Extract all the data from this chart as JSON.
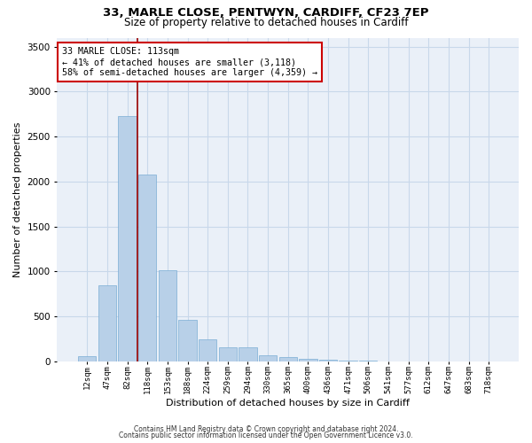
{
  "title_line1": "33, MARLE CLOSE, PENTWYN, CARDIFF, CF23 7EP",
  "title_line2": "Size of property relative to detached houses in Cardiff",
  "xlabel": "Distribution of detached houses by size in Cardiff",
  "ylabel": "Number of detached properties",
  "categories": [
    "12sqm",
    "47sqm",
    "82sqm",
    "118sqm",
    "153sqm",
    "188sqm",
    "224sqm",
    "259sqm",
    "294sqm",
    "330sqm",
    "365sqm",
    "400sqm",
    "436sqm",
    "471sqm",
    "506sqm",
    "541sqm",
    "577sqm",
    "612sqm",
    "647sqm",
    "683sqm",
    "718sqm"
  ],
  "values": [
    55,
    850,
    2730,
    2075,
    1010,
    460,
    250,
    155,
    155,
    65,
    50,
    30,
    20,
    15,
    10,
    5,
    5,
    3,
    2,
    2,
    1
  ],
  "bar_color": "#b8d0e8",
  "bar_edge_color": "#7aadd4",
  "grid_color": "#c8d8ea",
  "bg_color": "#eaf0f8",
  "vline_color": "#990000",
  "annotation_text": "33 MARLE CLOSE: 113sqm\n← 41% of detached houses are smaller (3,118)\n58% of semi-detached houses are larger (4,359) →",
  "annotation_box_color": "#ffffff",
  "annotation_box_edge": "#cc0000",
  "ylim": [
    0,
    3600
  ],
  "yticks": [
    0,
    500,
    1000,
    1500,
    2000,
    2500,
    3000,
    3500
  ],
  "footnote1": "Contains HM Land Registry data © Crown copyright and database right 2024.",
  "footnote2": "Contains public sector information licensed under the Open Government Licence v3.0."
}
